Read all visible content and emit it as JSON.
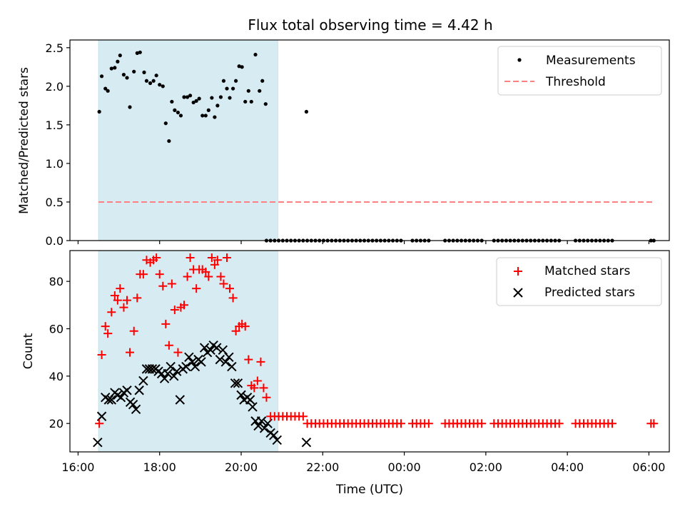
{
  "title": "Flux total observing time = 4.42 h",
  "colors": {
    "shade": "#add8e6",
    "measurement": "#000000",
    "threshold": "#ff8080",
    "matched": "#ff0000",
    "predicted": "#000000",
    "axis": "#000000"
  },
  "chart_data": [
    {
      "type": "scatter",
      "ylabel": "Matched/Predicted stars",
      "ylim": [
        0,
        2.6
      ],
      "yticks": [
        0.0,
        0.5,
        1.0,
        1.5,
        2.0,
        2.5
      ],
      "ytick_labels": [
        "0.0",
        "0.5",
        "1.0",
        "1.5",
        "2.0",
        "2.5"
      ],
      "legend": {
        "position": "top-right",
        "measurements": "Measurements",
        "threshold": "Threshold"
      },
      "shaded_interval": [
        16.5,
        20.9
      ],
      "threshold": {
        "value": 0.5,
        "x_range": [
          16.5,
          30.1
        ]
      },
      "measurements": [
        [
          16.52,
          1.67
        ],
        [
          16.58,
          2.13
        ],
        [
          16.67,
          1.97
        ],
        [
          16.73,
          1.94
        ],
        [
          16.82,
          2.23
        ],
        [
          16.9,
          2.24
        ],
        [
          16.97,
          2.32
        ],
        [
          17.03,
          2.4
        ],
        [
          17.12,
          2.15
        ],
        [
          17.2,
          2.11
        ],
        [
          17.27,
          1.73
        ],
        [
          17.37,
          2.19
        ],
        [
          17.45,
          2.43
        ],
        [
          17.52,
          2.44
        ],
        [
          17.62,
          2.18
        ],
        [
          17.68,
          2.07
        ],
        [
          17.77,
          2.04
        ],
        [
          17.85,
          2.07
        ],
        [
          17.92,
          2.14
        ],
        [
          18.0,
          2.02
        ],
        [
          18.08,
          2.0
        ],
        [
          18.15,
          1.52
        ],
        [
          18.23,
          1.29
        ],
        [
          18.3,
          1.8
        ],
        [
          18.37,
          1.69
        ],
        [
          18.45,
          1.66
        ],
        [
          18.52,
          1.62
        ],
        [
          18.6,
          1.86
        ],
        [
          18.68,
          1.86
        ],
        [
          18.75,
          1.88
        ],
        [
          18.83,
          1.79
        ],
        [
          18.9,
          1.81
        ],
        [
          18.97,
          1.84
        ],
        [
          19.05,
          1.62
        ],
        [
          19.13,
          1.62
        ],
        [
          19.2,
          1.69
        ],
        [
          19.28,
          1.85
        ],
        [
          19.35,
          1.6
        ],
        [
          19.42,
          1.75
        ],
        [
          19.5,
          1.86
        ],
        [
          19.57,
          2.07
        ],
        [
          19.65,
          1.97
        ],
        [
          19.72,
          1.85
        ],
        [
          19.8,
          1.97
        ],
        [
          19.87,
          2.07
        ],
        [
          19.95,
          2.26
        ],
        [
          20.02,
          2.25
        ],
        [
          20.1,
          1.8
        ],
        [
          20.18,
          1.94
        ],
        [
          20.25,
          1.8
        ],
        [
          20.35,
          2.41
        ],
        [
          20.45,
          1.94
        ],
        [
          20.52,
          2.07
        ],
        [
          20.6,
          1.77
        ],
        [
          21.6,
          1.67
        ],
        [
          20.62,
          0
        ],
        [
          20.72,
          0
        ],
        [
          20.82,
          0
        ],
        [
          20.92,
          0
        ],
        [
          21.02,
          0
        ],
        [
          21.12,
          0
        ],
        [
          21.22,
          0
        ],
        [
          21.32,
          0
        ],
        [
          21.42,
          0
        ],
        [
          21.52,
          0
        ],
        [
          21.62,
          0
        ],
        [
          21.72,
          0
        ],
        [
          21.82,
          0
        ],
        [
          21.92,
          0
        ],
        [
          22.02,
          0
        ],
        [
          22.12,
          0
        ],
        [
          22.22,
          0
        ],
        [
          22.32,
          0
        ],
        [
          22.42,
          0
        ],
        [
          22.52,
          0
        ],
        [
          22.62,
          0
        ],
        [
          22.72,
          0
        ],
        [
          22.82,
          0
        ],
        [
          22.92,
          0
        ],
        [
          23.02,
          0
        ],
        [
          23.12,
          0
        ],
        [
          23.22,
          0
        ],
        [
          23.32,
          0
        ],
        [
          23.42,
          0
        ],
        [
          23.52,
          0
        ],
        [
          23.62,
          0
        ],
        [
          23.72,
          0
        ],
        [
          23.82,
          0
        ],
        [
          23.92,
          0
        ],
        [
          24.2,
          0
        ],
        [
          24.3,
          0
        ],
        [
          24.4,
          0
        ],
        [
          24.5,
          0
        ],
        [
          24.6,
          0
        ],
        [
          25.0,
          0
        ],
        [
          25.1,
          0
        ],
        [
          25.2,
          0
        ],
        [
          25.3,
          0
        ],
        [
          25.4,
          0
        ],
        [
          25.5,
          0
        ],
        [
          25.6,
          0
        ],
        [
          25.7,
          0
        ],
        [
          25.8,
          0
        ],
        [
          25.9,
          0
        ],
        [
          26.2,
          0
        ],
        [
          26.3,
          0
        ],
        [
          26.4,
          0
        ],
        [
          26.5,
          0
        ],
        [
          26.6,
          0
        ],
        [
          26.7,
          0
        ],
        [
          26.8,
          0
        ],
        [
          26.9,
          0
        ],
        [
          27.0,
          0
        ],
        [
          27.1,
          0
        ],
        [
          27.2,
          0
        ],
        [
          27.3,
          0
        ],
        [
          27.4,
          0
        ],
        [
          27.5,
          0
        ],
        [
          27.6,
          0
        ],
        [
          27.7,
          0
        ],
        [
          27.8,
          0
        ],
        [
          28.2,
          0
        ],
        [
          28.3,
          0
        ],
        [
          28.4,
          0
        ],
        [
          28.5,
          0
        ],
        [
          28.6,
          0
        ],
        [
          28.7,
          0
        ],
        [
          28.8,
          0
        ],
        [
          28.9,
          0
        ],
        [
          29.0,
          0
        ],
        [
          29.1,
          0
        ],
        [
          30.05,
          0
        ],
        [
          30.12,
          0
        ]
      ]
    },
    {
      "type": "scatter",
      "ylabel": "Count",
      "xlabel": "Time (UTC)",
      "ylim": [
        8,
        93
      ],
      "yticks": [
        20,
        40,
        60,
        80
      ],
      "ytick_labels": [
        "20",
        "40",
        "60",
        "80"
      ],
      "xlim": [
        15.8,
        30.5
      ],
      "xticks": [
        16,
        18,
        20,
        22,
        24,
        26,
        28,
        30
      ],
      "xtick_labels": [
        "16:00",
        "18:00",
        "20:00",
        "22:00",
        "00:00",
        "02:00",
        "04:00",
        "06:00"
      ],
      "legend": {
        "position": "top-right",
        "matched": "Matched stars",
        "predicted": "Predicted stars"
      },
      "shaded_interval": [
        16.5,
        20.9
      ],
      "matched": [
        [
          16.52,
          20
        ],
        [
          16.58,
          49
        ],
        [
          16.67,
          61
        ],
        [
          16.73,
          58
        ],
        [
          16.82,
          67
        ],
        [
          16.9,
          74
        ],
        [
          16.97,
          72
        ],
        [
          17.03,
          77
        ],
        [
          17.12,
          69
        ],
        [
          17.2,
          72
        ],
        [
          17.27,
          50
        ],
        [
          17.37,
          59
        ],
        [
          17.45,
          73
        ],
        [
          17.52,
          83
        ],
        [
          17.6,
          83
        ],
        [
          17.68,
          89
        ],
        [
          17.77,
          88
        ],
        [
          17.85,
          89
        ],
        [
          17.92,
          90
        ],
        [
          18.0,
          83
        ],
        [
          18.08,
          78
        ],
        [
          18.15,
          62
        ],
        [
          18.23,
          53
        ],
        [
          18.3,
          79
        ],
        [
          18.37,
          68
        ],
        [
          18.45,
          50
        ],
        [
          18.52,
          69
        ],
        [
          18.6,
          70
        ],
        [
          18.68,
          82
        ],
        [
          18.75,
          90
        ],
        [
          18.83,
          85
        ],
        [
          18.9,
          77
        ],
        [
          18.97,
          85
        ],
        [
          19.05,
          85
        ],
        [
          19.13,
          84
        ],
        [
          19.2,
          82
        ],
        [
          19.28,
          90
        ],
        [
          19.35,
          87
        ],
        [
          19.42,
          89
        ],
        [
          19.5,
          82
        ],
        [
          19.57,
          79
        ],
        [
          19.65,
          90
        ],
        [
          19.72,
          77
        ],
        [
          19.8,
          73
        ],
        [
          19.87,
          59
        ],
        [
          19.95,
          61
        ],
        [
          20.02,
          62
        ],
        [
          20.1,
          61
        ],
        [
          20.18,
          47
        ],
        [
          20.25,
          36
        ],
        [
          20.32,
          35
        ],
        [
          20.4,
          38
        ],
        [
          20.48,
          46
        ],
        [
          20.55,
          35
        ],
        [
          20.62,
          31
        ],
        [
          20.72,
          23
        ],
        [
          20.82,
          23
        ],
        [
          20.92,
          23
        ],
        [
          21.02,
          23
        ],
        [
          21.12,
          23
        ],
        [
          21.22,
          23
        ],
        [
          21.32,
          23
        ],
        [
          21.42,
          23
        ],
        [
          21.52,
          23
        ],
        [
          21.62,
          20
        ],
        [
          21.72,
          20
        ],
        [
          21.82,
          20
        ],
        [
          21.92,
          20
        ],
        [
          22.02,
          20
        ],
        [
          22.12,
          20
        ],
        [
          22.22,
          20
        ],
        [
          22.32,
          20
        ],
        [
          22.42,
          20
        ],
        [
          22.52,
          20
        ],
        [
          22.62,
          20
        ],
        [
          22.72,
          20
        ],
        [
          22.82,
          20
        ],
        [
          22.92,
          20
        ],
        [
          23.02,
          20
        ],
        [
          23.12,
          20
        ],
        [
          23.22,
          20
        ],
        [
          23.32,
          20
        ],
        [
          23.42,
          20
        ],
        [
          23.52,
          20
        ],
        [
          23.62,
          20
        ],
        [
          23.72,
          20
        ],
        [
          23.82,
          20
        ],
        [
          23.92,
          20
        ],
        [
          24.2,
          20
        ],
        [
          24.3,
          20
        ],
        [
          24.4,
          20
        ],
        [
          24.5,
          20
        ],
        [
          24.6,
          20
        ],
        [
          25.0,
          20
        ],
        [
          25.1,
          20
        ],
        [
          25.2,
          20
        ],
        [
          25.3,
          20
        ],
        [
          25.4,
          20
        ],
        [
          25.5,
          20
        ],
        [
          25.6,
          20
        ],
        [
          25.7,
          20
        ],
        [
          25.8,
          20
        ],
        [
          25.9,
          20
        ],
        [
          26.2,
          20
        ],
        [
          26.3,
          20
        ],
        [
          26.4,
          20
        ],
        [
          26.5,
          20
        ],
        [
          26.6,
          20
        ],
        [
          26.7,
          20
        ],
        [
          26.8,
          20
        ],
        [
          26.9,
          20
        ],
        [
          27.0,
          20
        ],
        [
          27.1,
          20
        ],
        [
          27.2,
          20
        ],
        [
          27.3,
          20
        ],
        [
          27.4,
          20
        ],
        [
          27.5,
          20
        ],
        [
          27.6,
          20
        ],
        [
          27.7,
          20
        ],
        [
          27.8,
          20
        ],
        [
          28.2,
          20
        ],
        [
          28.3,
          20
        ],
        [
          28.4,
          20
        ],
        [
          28.5,
          20
        ],
        [
          28.6,
          20
        ],
        [
          28.7,
          20
        ],
        [
          28.8,
          20
        ],
        [
          28.9,
          20
        ],
        [
          29.0,
          20
        ],
        [
          29.1,
          20
        ],
        [
          30.05,
          20
        ],
        [
          30.12,
          20
        ]
      ],
      "predicted": [
        [
          16.48,
          12
        ],
        [
          16.58,
          23
        ],
        [
          16.67,
          31
        ],
        [
          16.75,
          30
        ],
        [
          16.82,
          30
        ],
        [
          16.9,
          33
        ],
        [
          16.97,
          32
        ],
        [
          17.05,
          31
        ],
        [
          17.12,
          33
        ],
        [
          17.2,
          34
        ],
        [
          17.28,
          29
        ],
        [
          17.35,
          28
        ],
        [
          17.42,
          26
        ],
        [
          17.5,
          34
        ],
        [
          17.6,
          38
        ],
        [
          17.68,
          43
        ],
        [
          17.75,
          43
        ],
        [
          17.82,
          43
        ],
        [
          17.9,
          43
        ],
        [
          17.97,
          42
        ],
        [
          18.05,
          41
        ],
        [
          18.12,
          39
        ],
        [
          18.2,
          41
        ],
        [
          18.27,
          44
        ],
        [
          18.35,
          40
        ],
        [
          18.42,
          42
        ],
        [
          18.5,
          30
        ],
        [
          18.57,
          43
        ],
        [
          18.65,
          44
        ],
        [
          18.72,
          48
        ],
        [
          18.8,
          46
        ],
        [
          18.87,
          44
        ],
        [
          18.95,
          47
        ],
        [
          19.02,
          46
        ],
        [
          19.1,
          52
        ],
        [
          19.17,
          50
        ],
        [
          19.25,
          51
        ],
        [
          19.32,
          53
        ],
        [
          19.4,
          52
        ],
        [
          19.48,
          47
        ],
        [
          19.55,
          51
        ],
        [
          19.62,
          46
        ],
        [
          19.7,
          48
        ],
        [
          19.77,
          44
        ],
        [
          19.85,
          37
        ],
        [
          19.92,
          37
        ],
        [
          20.0,
          32
        ],
        [
          20.07,
          30
        ],
        [
          20.15,
          31
        ],
        [
          20.22,
          30
        ],
        [
          20.28,
          27
        ],
        [
          20.35,
          21
        ],
        [
          20.42,
          19
        ],
        [
          20.5,
          21
        ],
        [
          20.57,
          18
        ],
        [
          20.65,
          20
        ],
        [
          20.72,
          16
        ],
        [
          20.8,
          15
        ],
        [
          20.88,
          13
        ],
        [
          21.6,
          12
        ]
      ]
    }
  ]
}
